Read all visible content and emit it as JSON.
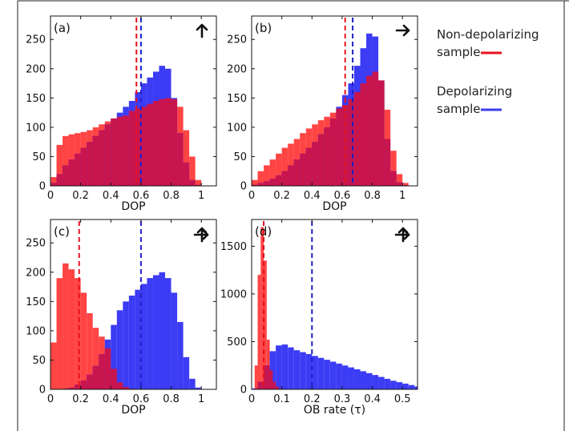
{
  "legend": {
    "items": [
      {
        "lines": [
          "Non-depolarizing",
          "sample"
        ],
        "color": "#e8121e"
      },
      {
        "lines": [
          "Depolarizing",
          "sample"
        ],
        "color": "#3c3cf0"
      }
    ]
  },
  "colors": {
    "red_series": "#ff4444",
    "blue_series": "#3c3cf5",
    "overlap": "#c8154e",
    "red_line": "#e8121e",
    "blue_line": "#2020c8"
  },
  "chart_data": [
    {
      "id": "a",
      "type": "histogram",
      "panel_label": "(a)",
      "arrow_icon": "arrow-up-icon",
      "xlabel": "DOP",
      "ylabel": "",
      "xlim": [
        0,
        1.1
      ],
      "ylim": [
        0,
        290
      ],
      "xticks": [
        0,
        0.2,
        0.4,
        0.6,
        0.8,
        1
      ],
      "xtick_labels": [
        "0",
        "0.2",
        "0.4",
        "0.6",
        "0.8",
        "1"
      ],
      "yticks": [
        0,
        50,
        100,
        150,
        200,
        250
      ],
      "ytick_labels": [
        "0",
        "50",
        "100",
        "150",
        "200",
        "250"
      ],
      "series": [
        {
          "name": "Non-depolarizing sample",
          "color": "red",
          "x": [
            0.02,
            0.06,
            0.1,
            0.14,
            0.18,
            0.22,
            0.26,
            0.3,
            0.34,
            0.38,
            0.42,
            0.46,
            0.5,
            0.54,
            0.58,
            0.62,
            0.66,
            0.7,
            0.74,
            0.78,
            0.82,
            0.86,
            0.9,
            0.94,
            0.98
          ],
          "values": [
            15,
            70,
            85,
            88,
            90,
            92,
            95,
            100,
            105,
            110,
            115,
            118,
            120,
            128,
            132,
            135,
            140,
            145,
            148,
            150,
            148,
            135,
            95,
            50,
            10
          ]
        },
        {
          "name": "Depolarizing sample",
          "color": "blue",
          "x": [
            0.02,
            0.06,
            0.1,
            0.14,
            0.18,
            0.22,
            0.26,
            0.3,
            0.34,
            0.38,
            0.42,
            0.46,
            0.5,
            0.54,
            0.58,
            0.62,
            0.66,
            0.7,
            0.74,
            0.78,
            0.82,
            0.86,
            0.9,
            0.94,
            0.98
          ],
          "values": [
            5,
            20,
            35,
            45,
            55,
            65,
            75,
            85,
            95,
            105,
            115,
            125,
            135,
            145,
            160,
            175,
            185,
            195,
            205,
            200,
            150,
            90,
            40,
            10,
            2
          ]
        }
      ],
      "mean_lines": [
        {
          "color": "red",
          "x": 0.57
        },
        {
          "color": "blue",
          "x": 0.6
        }
      ]
    },
    {
      "id": "b",
      "type": "histogram",
      "panel_label": "(b)",
      "arrow_icon": "arrow-right-icon",
      "xlabel": "DOP",
      "ylabel": "",
      "xlim": [
        0,
        1.1
      ],
      "ylim": [
        0,
        290
      ],
      "xticks": [
        0,
        0.2,
        0.4,
        0.6,
        0.8,
        1
      ],
      "xtick_labels": [
        "0",
        "0.2",
        "0.4",
        "0.6",
        "0.8",
        "1"
      ],
      "yticks": [
        0,
        50,
        100,
        150,
        200,
        250
      ],
      "ytick_labels": [
        "0",
        "50",
        "100",
        "150",
        "200",
        "250"
      ],
      "series": [
        {
          "name": "Non-depolarizing sample",
          "color": "red",
          "x": [
            0.02,
            0.06,
            0.1,
            0.14,
            0.18,
            0.22,
            0.26,
            0.3,
            0.34,
            0.38,
            0.42,
            0.46,
            0.5,
            0.54,
            0.58,
            0.62,
            0.66,
            0.7,
            0.74,
            0.78,
            0.82,
            0.86,
            0.9,
            0.94,
            0.98,
            1.02
          ],
          "values": [
            10,
            25,
            35,
            45,
            55,
            65,
            72,
            80,
            90,
            98,
            105,
            112,
            118,
            125,
            132,
            138,
            148,
            160,
            175,
            188,
            195,
            180,
            130,
            60,
            20,
            5
          ]
        },
        {
          "name": "Depolarizing sample",
          "color": "blue",
          "x": [
            0.02,
            0.06,
            0.1,
            0.14,
            0.18,
            0.22,
            0.26,
            0.3,
            0.34,
            0.38,
            0.42,
            0.46,
            0.5,
            0.54,
            0.58,
            0.62,
            0.66,
            0.7,
            0.74,
            0.78,
            0.82,
            0.86,
            0.9,
            0.94,
            0.98,
            1.02
          ],
          "values": [
            2,
            5,
            8,
            12,
            18,
            25,
            35,
            45,
            55,
            65,
            75,
            88,
            100,
            115,
            135,
            155,
            175,
            205,
            235,
            260,
            255,
            180,
            80,
            25,
            6,
            1
          ]
        }
      ],
      "mean_lines": [
        {
          "color": "red",
          "x": 0.62
        },
        {
          "color": "blue",
          "x": 0.67
        }
      ]
    },
    {
      "id": "c",
      "type": "histogram",
      "panel_label": "(c)",
      "arrow_icon": "cross-arrows-icon",
      "xlabel": "DOP",
      "ylabel": "",
      "xlim": [
        0,
        1.1
      ],
      "ylim": [
        0,
        290
      ],
      "xticks": [
        0,
        0.2,
        0.4,
        0.6,
        0.8,
        1
      ],
      "xtick_labels": [
        "0",
        "0.2",
        "0.4",
        "0.6",
        "0.8",
        "1"
      ],
      "yticks": [
        0,
        50,
        100,
        150,
        200,
        250
      ],
      "ytick_labels": [
        "0",
        "50",
        "100",
        "150",
        "200",
        "250"
      ],
      "series": [
        {
          "name": "Non-depolarizing sample",
          "color": "red",
          "x": [
            0.02,
            0.06,
            0.1,
            0.14,
            0.18,
            0.22,
            0.26,
            0.3,
            0.34,
            0.38,
            0.42,
            0.46,
            0.5,
            0.54
          ],
          "values": [
            80,
            190,
            215,
            205,
            190,
            165,
            130,
            105,
            90,
            70,
            35,
            12,
            4,
            1
          ]
        },
        {
          "name": "Depolarizing sample",
          "color": "blue",
          "x": [
            0.02,
            0.06,
            0.1,
            0.14,
            0.18,
            0.22,
            0.26,
            0.3,
            0.34,
            0.38,
            0.42,
            0.46,
            0.5,
            0.54,
            0.58,
            0.62,
            0.66,
            0.7,
            0.74,
            0.78,
            0.82,
            0.86,
            0.9,
            0.94,
            0.98
          ],
          "values": [
            0,
            0,
            1,
            3,
            8,
            15,
            25,
            40,
            60,
            85,
            110,
            135,
            150,
            160,
            170,
            180,
            190,
            195,
            200,
            190,
            165,
            115,
            55,
            18,
            3
          ]
        }
      ],
      "mean_lines": [
        {
          "color": "red",
          "x": 0.19
        },
        {
          "color": "blue",
          "x": 0.6
        }
      ]
    },
    {
      "id": "d",
      "type": "histogram",
      "panel_label": "(d)",
      "arrow_icon": "cross-arrows-icon",
      "xlabel": "OB rate (τ)",
      "ylabel": "",
      "xlim": [
        0,
        0.55
      ],
      "ylim": [
        0,
        1780
      ],
      "xticks": [
        0,
        0.1,
        0.2,
        0.3,
        0.4,
        0.5
      ],
      "xtick_labels": [
        "0",
        "0.1",
        "0.2",
        "0.3",
        "0.4",
        "0.5"
      ],
      "yticks": [
        0,
        500,
        1000,
        1500
      ],
      "ytick_labels": [
        "0",
        "500",
        "1000",
        "1500"
      ],
      "series": [
        {
          "name": "Non-depolarizing sample",
          "color": "red",
          "x": [
            0.015,
            0.025,
            0.035,
            0.045,
            0.055,
            0.065,
            0.075,
            0.085,
            0.095,
            0.105
          ],
          "values": [
            250,
            1200,
            1700,
            1350,
            520,
            200,
            80,
            30,
            10,
            3
          ]
        },
        {
          "name": "Depolarizing sample",
          "color": "blue",
          "x": [
            0.01,
            0.03,
            0.05,
            0.07,
            0.09,
            0.11,
            0.13,
            0.15,
            0.17,
            0.19,
            0.21,
            0.23,
            0.25,
            0.27,
            0.29,
            0.31,
            0.33,
            0.35,
            0.37,
            0.39,
            0.41,
            0.43,
            0.45,
            0.47,
            0.49,
            0.51,
            0.53,
            0.55
          ],
          "values": [
            10,
            80,
            250,
            400,
            460,
            470,
            440,
            410,
            390,
            370,
            350,
            330,
            310,
            290,
            270,
            250,
            230,
            210,
            190,
            170,
            150,
            130,
            110,
            90,
            75,
            60,
            45,
            30
          ]
        }
      ],
      "mean_lines": [
        {
          "color": "red",
          "x": 0.04
        },
        {
          "color": "blue",
          "x": 0.2
        }
      ]
    }
  ]
}
